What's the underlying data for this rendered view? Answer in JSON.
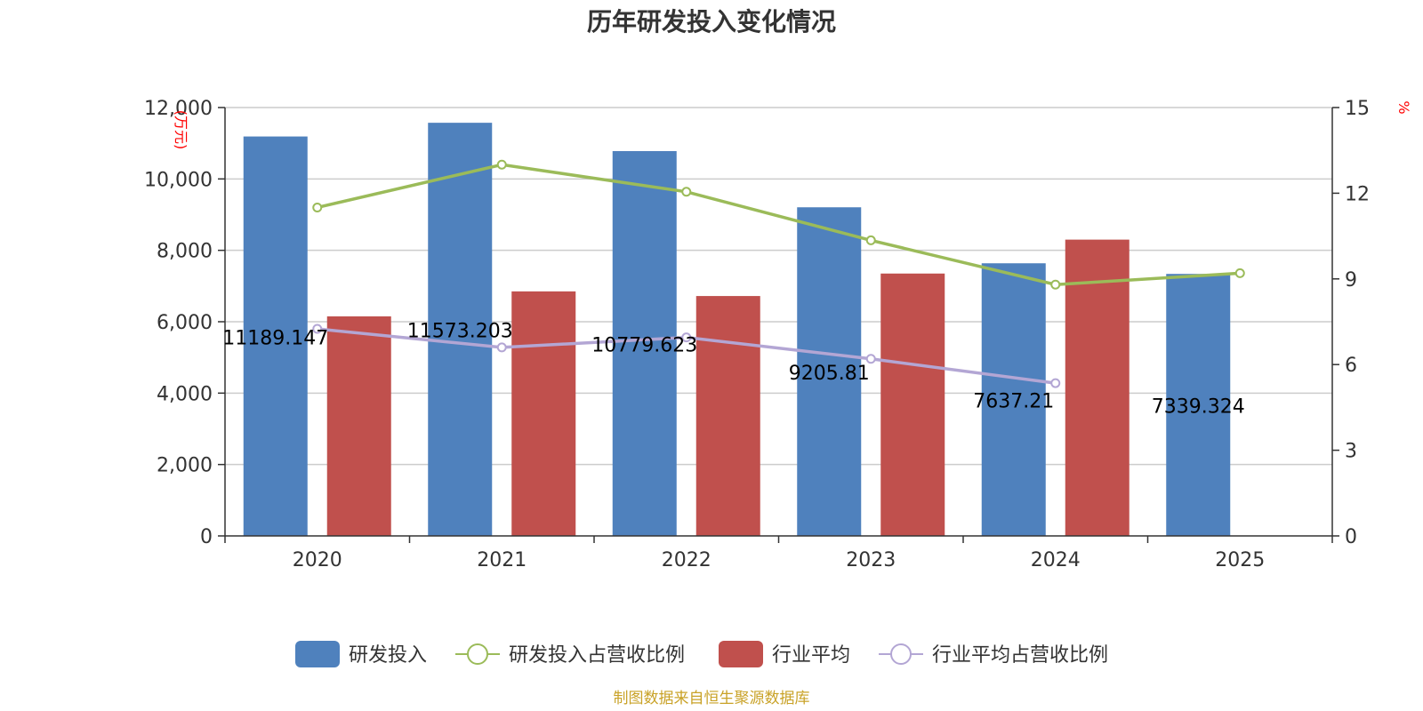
{
  "chart_data": {
    "type": "bar",
    "title": "历年研发投入变化情况",
    "categories": [
      "2020",
      "2021",
      "2022",
      "2023",
      "2024",
      "2025"
    ],
    "y_left": {
      "unit": "万元",
      "ylim": [
        0,
        12000
      ],
      "ticks": [
        "0",
        "2,000",
        "4,000",
        "6,000",
        "8,000",
        "10,000",
        "12,000"
      ],
      "tick_values": [
        0,
        2000,
        4000,
        6000,
        8000,
        10000,
        12000
      ]
    },
    "y_right": {
      "unit": "%",
      "ylim": [
        0,
        15
      ],
      "ticks": [
        "0",
        "3",
        "6",
        "9",
        "12",
        "15"
      ],
      "tick_values": [
        0,
        3,
        6,
        9,
        12,
        15
      ]
    },
    "grid": true,
    "legend_position": "bottom",
    "series": [
      {
        "name": "研发投入",
        "kind": "bar",
        "axis": "left",
        "color": "#4f81bd",
        "values": [
          11189.147,
          11573.203,
          10779.623,
          9205.81,
          7637.21,
          7339.324
        ],
        "labels": [
          "11189.147",
          "11573.203",
          "10779.623",
          "9205.81",
          "7637.21",
          "7339.324"
        ]
      },
      {
        "name": "研发投入占营收比例",
        "kind": "line",
        "axis": "right",
        "color": "#9bbb59",
        "values": [
          11.5,
          13.0,
          12.05,
          10.35,
          8.8,
          9.2
        ]
      },
      {
        "name": "行业平均",
        "kind": "bar",
        "axis": "left",
        "color": "#c0504d",
        "values": [
          6150,
          6850,
          6720,
          7350,
          8300,
          null
        ]
      },
      {
        "name": "行业平均占营收比例",
        "kind": "line",
        "axis": "right",
        "color": "#b3a6d4",
        "values": [
          7.25,
          6.6,
          6.95,
          6.2,
          5.35,
          null
        ]
      }
    ],
    "footer": "制图数据来自恒生聚源数据库"
  }
}
